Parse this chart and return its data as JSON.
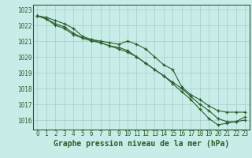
{
  "x_values": [
    0,
    1,
    2,
    3,
    4,
    5,
    6,
    7,
    8,
    9,
    10,
    11,
    12,
    13,
    14,
    15,
    16,
    17,
    18,
    19,
    20,
    21,
    22,
    23
  ],
  "line1": [
    1022.6,
    1022.5,
    1022.3,
    1022.1,
    1021.8,
    1021.3,
    1021.1,
    1021.0,
    1020.9,
    1020.8,
    1021.0,
    1020.8,
    1020.5,
    1020.0,
    1019.5,
    1019.2,
    1018.1,
    1017.6,
    1017.3,
    1016.9,
    1016.6,
    1016.5,
    1016.5,
    1016.5
  ],
  "line2": [
    1022.6,
    1022.4,
    1022.1,
    1021.9,
    1021.5,
    1021.2,
    1021.1,
    1020.9,
    1020.7,
    1020.5,
    1020.3,
    1020.0,
    1019.6,
    1019.2,
    1018.8,
    1018.4,
    1018.0,
    1017.5,
    1017.0,
    1016.6,
    1016.1,
    1015.9,
    1015.9,
    1016.0
  ],
  "line3": [
    1022.6,
    1022.4,
    1022.0,
    1021.8,
    1021.4,
    1021.2,
    1021.0,
    1020.9,
    1020.7,
    1020.6,
    1020.4,
    1020.0,
    1019.6,
    1019.2,
    1018.8,
    1018.3,
    1017.8,
    1017.3,
    1016.7,
    1016.1,
    1015.7,
    1015.8,
    1015.9,
    1016.2
  ],
  "line_color": "#2a5e2a",
  "bg_color": "#c8ece8",
  "grid_color": "#a8cccc",
  "ylim": [
    1015.4,
    1023.3
  ],
  "yticks": [
    1016,
    1017,
    1018,
    1019,
    1020,
    1021,
    1022,
    1023
  ],
  "xlabel": "Graphe pression niveau de la mer (hPa)",
  "tick_fontsize": 5.5,
  "xlabel_fontsize": 7.0
}
